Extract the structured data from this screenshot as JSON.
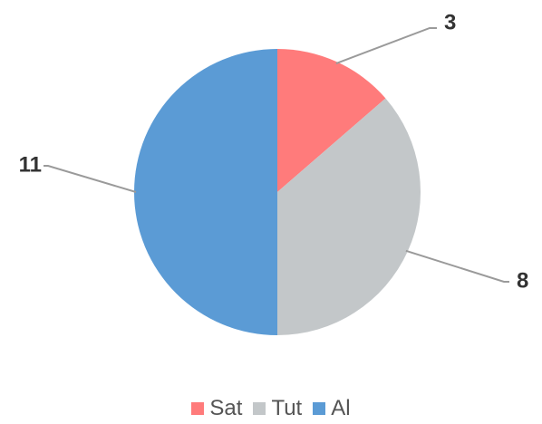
{
  "chart_data": {
    "type": "pie",
    "title": "",
    "categories": [
      "Sat",
      "Tut",
      "Al"
    ],
    "values": [
      3,
      8,
      11
    ],
    "colors": [
      "#ff7b7b",
      "#c3c7c9",
      "#5b9bd5"
    ],
    "data_labels": [
      "3",
      "8",
      "11"
    ],
    "legend": {
      "placement": "bottom",
      "entries": [
        "Sat",
        "Tut",
        "Al"
      ]
    },
    "start_angle": "12 o'clock",
    "direction": "clockwise"
  },
  "colors": {
    "label_text": "#333333",
    "legend_text": "#555555",
    "leader_line": "#9a9a9a",
    "background": "#ffffff"
  }
}
